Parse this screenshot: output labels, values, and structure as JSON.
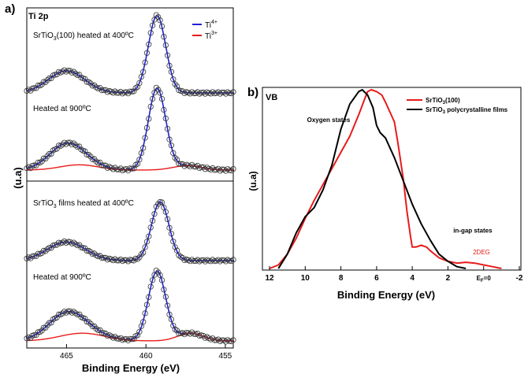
{
  "chart_data": [
    {
      "type": "line",
      "panel_label": "a)",
      "title": "Ti 2p",
      "xlabel": "Binding Energy (eV)",
      "ylabel": "(u.a)",
      "xlim": [
        467.5,
        454.5
      ],
      "xticks": [
        465,
        460,
        455
      ],
      "legend": {
        "position": "top-right",
        "entries": [
          {
            "name": "Ti",
            "sup": "4+",
            "color": "#1f22d6"
          },
          {
            "name": "Ti",
            "sup": "3+",
            "color": "#e81b1b"
          }
        ]
      },
      "subplots": [
        {
          "label": "SrTiO",
          "sub": "3",
          "tail": "(100) heated at 400ºC",
          "ti4": [
            {
              "center": 465.0,
              "height": 0.28,
              "width": 1.15
            },
            {
              "center": 459.3,
              "height": 0.98,
              "width": 0.55
            }
          ],
          "ti3": []
        },
        {
          "label": "Heated at 900ºC",
          "sub": "",
          "tail": "",
          "ti4": [
            {
              "center": 465.0,
              "height": 0.26,
              "width": 1.1
            },
            {
              "center": 459.3,
              "height": 0.93,
              "width": 0.55
            }
          ],
          "ti3": [
            {
              "center": 464.2,
              "height": 0.06,
              "width": 1.2
            },
            {
              "center": 457.4,
              "height": 0.05,
              "width": 0.9
            }
          ]
        },
        {
          "label": "SrTiO",
          "sub": "3",
          "tail": " films heated at 400ºC",
          "ti4": [
            {
              "center": 465.0,
              "height": 0.26,
              "width": 1.2
            },
            {
              "center": 459.1,
              "height": 0.82,
              "width": 0.55
            }
          ],
          "ti3": []
        },
        {
          "label": "Heated at 900ºC",
          "sub": "",
          "tail": "",
          "ti4": [
            {
              "center": 465.0,
              "height": 0.3,
              "width": 1.15
            },
            {
              "center": 459.3,
              "height": 0.9,
              "width": 0.55
            }
          ],
          "ti3": [
            {
              "center": 464.0,
              "height": 0.1,
              "width": 1.4
            },
            {
              "center": 457.2,
              "height": 0.1,
              "width": 0.8
            }
          ]
        }
      ]
    },
    {
      "type": "line",
      "panel_label": "b)",
      "title": "VB",
      "xlabel": "Binding Energy (eV)",
      "ylabel": "(u.a)",
      "xlim": [
        12,
        -2
      ],
      "ylim": [
        0,
        1
      ],
      "xticks": [
        12,
        10,
        8,
        6,
        4,
        2,
        -2
      ],
      "fermi_tick": {
        "label": "E",
        "sub": "F",
        "tail": "=0",
        "x": 0
      },
      "legend": {
        "position": "top-right",
        "entries": [
          {
            "name": "SrTiO",
            "sub": "3",
            "tail": "(100)",
            "color": "#e81b1b"
          },
          {
            "name": "SrTiO",
            "sub": "3",
            "tail": " polycrystalline films",
            "color": "#000000"
          }
        ]
      },
      "annotations": [
        {
          "text": "Oxygen states",
          "x": 9.9,
          "y": 0.82,
          "color": "#000000"
        },
        {
          "text": "in-gap states",
          "x": 1.7,
          "y": 0.2,
          "color": "#000000"
        },
        {
          "text": "2DEG",
          "x": 0.6,
          "y": 0.08,
          "color": "#e81b1b"
        }
      ],
      "series": [
        {
          "name": "SrTiO3(100)",
          "color": "#e81b1b",
          "x": [
            12.0,
            11.5,
            11.0,
            10.5,
            10.0,
            9.5,
            9.0,
            8.5,
            8.0,
            7.5,
            7.0,
            6.7,
            6.5,
            6.3,
            6.0,
            5.7,
            5.5,
            5.0,
            4.8,
            4.5,
            4.3,
            4.1,
            4.0,
            3.8,
            3.5,
            3.2,
            3.0,
            2.5,
            2.0,
            1.5,
            1.0,
            0.5,
            0.0,
            -0.5,
            -1.0
          ],
          "y": [
            0.0,
            0.02,
            0.08,
            0.17,
            0.28,
            0.38,
            0.47,
            0.56,
            0.65,
            0.74,
            0.86,
            0.94,
            0.99,
            1.0,
            0.99,
            0.97,
            0.93,
            0.82,
            0.7,
            0.5,
            0.32,
            0.18,
            0.12,
            0.12,
            0.13,
            0.12,
            0.1,
            0.06,
            0.04,
            0.03,
            0.035,
            0.03,
            0.02,
            0.01,
            0.0
          ]
        },
        {
          "name": "SrTiO3 polycrystalline films",
          "color": "#000000",
          "x": [
            11.5,
            11.0,
            10.5,
            10.0,
            9.5,
            9.0,
            8.5,
            8.0,
            7.5,
            7.0,
            6.8,
            6.5,
            6.2,
            6.0,
            5.8,
            5.5,
            5.0,
            4.5,
            4.0,
            3.5,
            3.0,
            2.5,
            2.0,
            1.5,
            1.0
          ],
          "y": [
            0.0,
            0.08,
            0.2,
            0.29,
            0.34,
            0.44,
            0.58,
            0.78,
            0.92,
            0.99,
            1.0,
            0.97,
            0.9,
            0.8,
            0.76,
            0.73,
            0.62,
            0.49,
            0.36,
            0.25,
            0.16,
            0.08,
            0.04,
            0.01,
            0.0
          ]
        }
      ]
    }
  ]
}
